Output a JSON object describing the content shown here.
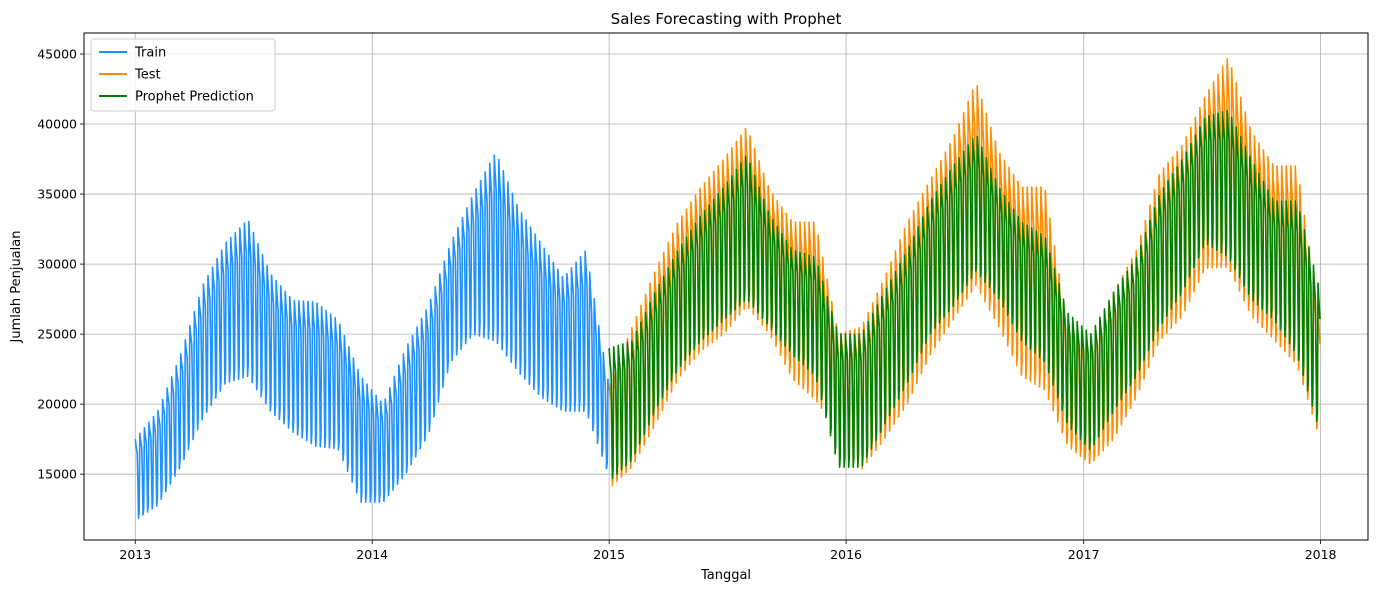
{
  "chart_data": {
    "type": "line",
    "title": "Sales Forecasting with Prophet",
    "xlabel": "Tanggal",
    "ylabel": "Jumlah Penjualan",
    "xlim": [
      "2012-10-14",
      "2018-03-15"
    ],
    "ylim": [
      10300,
      46500
    ],
    "x_ticks": [
      "2013-01-01",
      "2014-01-01",
      "2015-01-01",
      "2016-01-01",
      "2017-01-01",
      "2018-01-01"
    ],
    "x_tick_labels": [
      "2013",
      "2014",
      "2015",
      "2016",
      "2017",
      "2018"
    ],
    "y_ticks": [
      15000,
      20000,
      25000,
      30000,
      35000,
      40000,
      45000
    ],
    "y_tick_labels": [
      "15000",
      "20000",
      "25000",
      "30000",
      "35000",
      "40000",
      "45000"
    ],
    "grid": true,
    "legend_position": "top-left",
    "series": [
      {
        "name": "Train",
        "color": "#1e90ff",
        "start_date": "2013-01-01",
        "end_date": "2014-12-31",
        "monthly_weekly_max": [
          17500,
          19500,
          23500,
          28500,
          31500,
          33200,
          29300,
          27400,
          27300,
          26000,
          22000,
          20000,
          24000,
          27000,
          31500,
          35000,
          38000,
          34000,
          31500,
          29000,
          31000,
          21500
        ],
        "monthly_weekly_min": [
          11700,
          12800,
          15500,
          19000,
          21500,
          22000,
          19500,
          18000,
          17000,
          16800,
          13000,
          13000,
          15000,
          17800,
          23000,
          25000,
          24500,
          22300,
          20500,
          19500,
          19500,
          15000
        ]
      },
      {
        "name": "Test",
        "color": "#ff8c00",
        "start_date": "2015-01-01",
        "end_date": "2017-12-31",
        "monthly_weekly_max": [
          21500,
          25500,
          29500,
          33000,
          35500,
          37500,
          39800,
          35300,
          33000,
          33000,
          25000,
          25500,
          29000,
          33000,
          36000,
          39000,
          43000,
          38000,
          35500,
          35500,
          25500,
          24500,
          28000,
          31000,
          36500,
          38500,
          42000,
          44800,
          39500,
          37000,
          37000,
          26000
        ],
        "monthly_weekly_min": [
          14000,
          15500,
          18500,
          21800,
          23800,
          25000,
          27000,
          25000,
          21800,
          20300,
          18000,
          15300,
          17500,
          20000,
          23500,
          26000,
          28500,
          25500,
          22000,
          21000,
          17000,
          15700,
          17500,
          20500,
          24500,
          26300,
          29700,
          29800,
          26300,
          24600,
          22800,
          17500
        ]
      },
      {
        "name": "Prophet Prediction",
        "color": "#008000",
        "start_date": "2015-01-01",
        "end_date": "2017-12-31",
        "monthly_weekly_max": [
          24000,
          24500,
          28000,
          31000,
          33500,
          35500,
          37800,
          33500,
          31000,
          30500,
          25000,
          25000,
          28000,
          31000,
          34500,
          37000,
          39300,
          35500,
          33000,
          32000,
          26500,
          25000,
          28000,
          30500,
          35000,
          37500,
          40500,
          41000,
          37500,
          34500,
          34500,
          28100
        ],
        "monthly_weekly_min": [
          14500,
          16000,
          19500,
          22500,
          24500,
          26000,
          27500,
          25500,
          23500,
          22000,
          15500,
          15500,
          18500,
          21500,
          25000,
          27000,
          29500,
          27500,
          24500,
          23000,
          18500,
          16700,
          19500,
          22000,
          25500,
          28000,
          31500,
          30500,
          27500,
          26000,
          23500,
          18000
        ]
      }
    ]
  }
}
